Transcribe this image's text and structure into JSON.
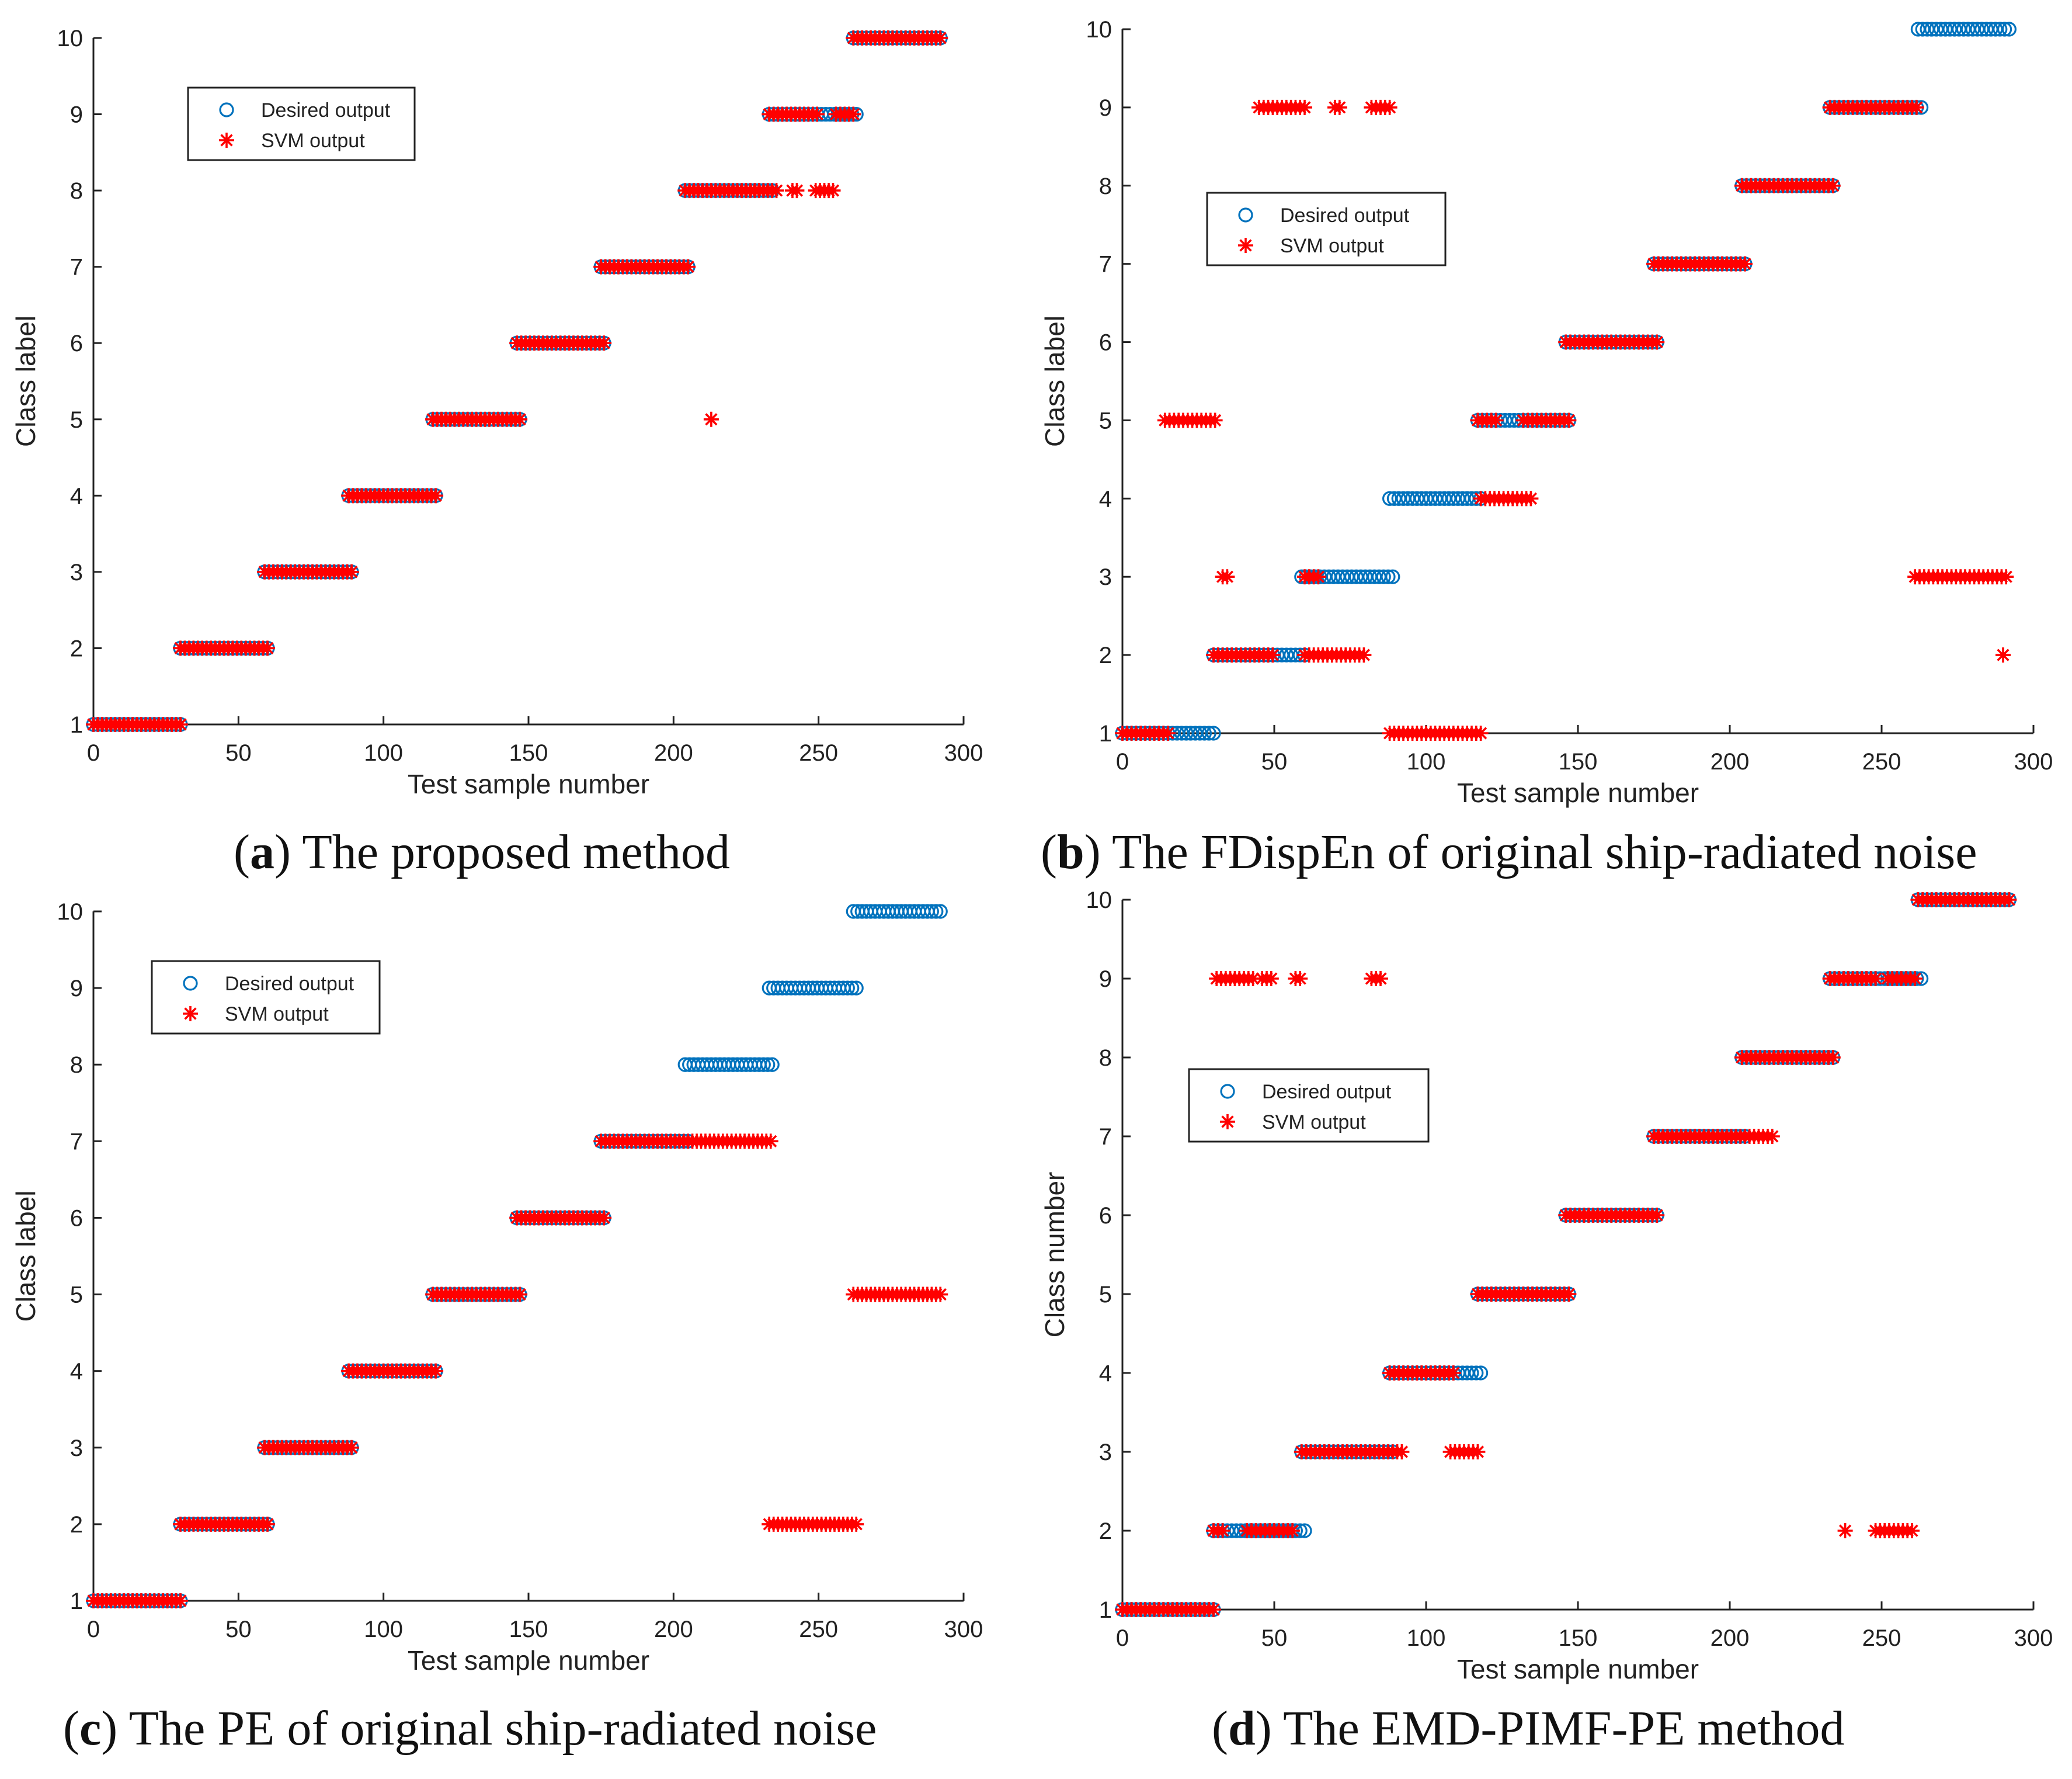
{
  "colors": {
    "desired": "#0072BD",
    "svm": "#FF0000",
    "axis": "#222222",
    "background": "#ffffff"
  },
  "legend": {
    "desired_label": "Desired output",
    "svm_label": "SVM output"
  },
  "chart_data": [
    {
      "id": "a",
      "type": "scatter",
      "caption_letter": "a",
      "caption_text": "The proposed method",
      "title": "",
      "xlabel": "Test sample number",
      "ylabel": "Class label",
      "xlim": [
        0,
        300
      ],
      "ylim": [
        1,
        10
      ],
      "xticks": [
        0,
        50,
        100,
        150,
        200,
        250,
        300
      ],
      "yticks": [
        1,
        2,
        3,
        4,
        5,
        6,
        7,
        8,
        9,
        10
      ],
      "legend_position": "top-left",
      "desired": [
        {
          "y": 1,
          "x_start": 0,
          "x_end": 31
        },
        {
          "y": 2,
          "x_start": 30,
          "x_end": 60
        },
        {
          "y": 3,
          "x_start": 59,
          "x_end": 89
        },
        {
          "y": 4,
          "x_start": 88,
          "x_end": 118
        },
        {
          "y": 5,
          "x_start": 117,
          "x_end": 147
        },
        {
          "y": 6,
          "x_start": 146,
          "x_end": 176
        },
        {
          "y": 7,
          "x_start": 175,
          "x_end": 205
        },
        {
          "y": 8,
          "x_start": 204,
          "x_end": 234
        },
        {
          "y": 9,
          "x_start": 233,
          "x_end": 263
        },
        {
          "y": 10,
          "x_start": 262,
          "x_end": 292
        }
      ],
      "svm": [
        {
          "y": 1,
          "x_start": 0,
          "x_end": 31
        },
        {
          "y": 2,
          "x_start": 30,
          "x_end": 60
        },
        {
          "y": 3,
          "x_start": 59,
          "x_end": 89
        },
        {
          "y": 4,
          "x_start": 88,
          "x_end": 118
        },
        {
          "y": 5,
          "x_start": 117,
          "x_end": 147
        },
        {
          "y": 6,
          "x_start": 146,
          "x_end": 176
        },
        {
          "y": 7,
          "x_start": 175,
          "x_end": 205
        },
        {
          "y": 8,
          "x_start": 204,
          "x_end": 236
        },
        {
          "y": 8,
          "x_start": 241,
          "x_end": 243
        },
        {
          "y": 8,
          "x_start": 249,
          "x_end": 256
        },
        {
          "y": 5,
          "x_start": 213,
          "x_end": 213
        },
        {
          "y": 9,
          "x_start": 233,
          "x_end": 250
        },
        {
          "y": 9,
          "x_start": 256,
          "x_end": 263
        },
        {
          "y": 10,
          "x_start": 262,
          "x_end": 292
        }
      ]
    },
    {
      "id": "b",
      "type": "scatter",
      "caption_letter": "b",
      "caption_text": "The FDispEn of original ship-radiated noise",
      "title": "",
      "xlabel": "Test sample number",
      "ylabel": "Class label",
      "xlim": [
        0,
        300
      ],
      "ylim": [
        1,
        10
      ],
      "xticks": [
        0,
        50,
        100,
        150,
        200,
        250,
        300
      ],
      "yticks": [
        1,
        2,
        3,
        4,
        5,
        6,
        7,
        8,
        9,
        10
      ],
      "legend_position": "top-left",
      "desired": [
        {
          "y": 1,
          "x_start": 0,
          "x_end": 31
        },
        {
          "y": 2,
          "x_start": 30,
          "x_end": 60
        },
        {
          "y": 3,
          "x_start": 59,
          "x_end": 89
        },
        {
          "y": 4,
          "x_start": 88,
          "x_end": 118
        },
        {
          "y": 5,
          "x_start": 117,
          "x_end": 147
        },
        {
          "y": 6,
          "x_start": 146,
          "x_end": 176
        },
        {
          "y": 7,
          "x_start": 175,
          "x_end": 205
        },
        {
          "y": 8,
          "x_start": 204,
          "x_end": 234
        },
        {
          "y": 9,
          "x_start": 233,
          "x_end": 263
        },
        {
          "y": 10,
          "x_start": 262,
          "x_end": 292
        }
      ],
      "svm": [
        {
          "y": 1,
          "x_start": 0,
          "x_end": 16
        },
        {
          "y": 5,
          "x_start": 14,
          "x_end": 31
        },
        {
          "y": 2,
          "x_start": 30,
          "x_end": 50
        },
        {
          "y": 3,
          "x_start": 33,
          "x_end": 35
        },
        {
          "y": 9,
          "x_start": 45,
          "x_end": 61
        },
        {
          "y": 9,
          "x_start": 70,
          "x_end": 72
        },
        {
          "y": 9,
          "x_start": 82,
          "x_end": 89
        },
        {
          "y": 2,
          "x_start": 60,
          "x_end": 80
        },
        {
          "y": 3,
          "x_start": 60,
          "x_end": 65
        },
        {
          "y": 1,
          "x_start": 88,
          "x_end": 118
        },
        {
          "y": 5,
          "x_start": 117,
          "x_end": 124
        },
        {
          "y": 5,
          "x_start": 132,
          "x_end": 147
        },
        {
          "y": 4,
          "x_start": 118,
          "x_end": 135
        },
        {
          "y": 6,
          "x_start": 146,
          "x_end": 176
        },
        {
          "y": 7,
          "x_start": 175,
          "x_end": 205
        },
        {
          "y": 8,
          "x_start": 204,
          "x_end": 234
        },
        {
          "y": 9,
          "x_start": 233,
          "x_end": 262
        },
        {
          "y": 3,
          "x_start": 261,
          "x_end": 291
        },
        {
          "y": 2,
          "x_start": 290,
          "x_end": 291
        }
      ]
    },
    {
      "id": "c",
      "type": "scatter",
      "caption_letter": "c",
      "caption_text": "The PE of original ship-radiated noise",
      "title": "",
      "xlabel": "Test sample number",
      "ylabel": "Class label",
      "xlim": [
        0,
        300
      ],
      "ylim": [
        1,
        10
      ],
      "xticks": [
        0,
        50,
        100,
        150,
        200,
        250,
        300
      ],
      "yticks": [
        1,
        2,
        3,
        4,
        5,
        6,
        7,
        8,
        9,
        10
      ],
      "legend_position": "top-left",
      "desired": [
        {
          "y": 1,
          "x_start": 0,
          "x_end": 31
        },
        {
          "y": 2,
          "x_start": 30,
          "x_end": 60
        },
        {
          "y": 3,
          "x_start": 59,
          "x_end": 89
        },
        {
          "y": 4,
          "x_start": 88,
          "x_end": 118
        },
        {
          "y": 5,
          "x_start": 117,
          "x_end": 147
        },
        {
          "y": 6,
          "x_start": 146,
          "x_end": 176
        },
        {
          "y": 7,
          "x_start": 175,
          "x_end": 205
        },
        {
          "y": 8,
          "x_start": 204,
          "x_end": 234
        },
        {
          "y": 9,
          "x_start": 233,
          "x_end": 263
        },
        {
          "y": 10,
          "x_start": 262,
          "x_end": 292
        }
      ],
      "svm": [
        {
          "y": 1,
          "x_start": 0,
          "x_end": 31
        },
        {
          "y": 2,
          "x_start": 30,
          "x_end": 60
        },
        {
          "y": 3,
          "x_start": 59,
          "x_end": 89
        },
        {
          "y": 4,
          "x_start": 88,
          "x_end": 118
        },
        {
          "y": 5,
          "x_start": 117,
          "x_end": 147
        },
        {
          "y": 6,
          "x_start": 146,
          "x_end": 176
        },
        {
          "y": 7,
          "x_start": 175,
          "x_end": 234
        },
        {
          "y": 2,
          "x_start": 233,
          "x_end": 263
        },
        {
          "y": 5,
          "x_start": 262,
          "x_end": 292
        }
      ]
    },
    {
      "id": "d",
      "type": "scatter",
      "caption_letter": "d",
      "caption_text": "The EMD-PIMF-PE method",
      "title": "",
      "xlabel": "Test sample number",
      "ylabel": "Class number",
      "xlim": [
        0,
        300
      ],
      "ylim": [
        1,
        10
      ],
      "xticks": [
        0,
        50,
        100,
        150,
        200,
        250,
        300
      ],
      "yticks": [
        1,
        2,
        3,
        4,
        5,
        6,
        7,
        8,
        9,
        10
      ],
      "legend_position": "top-left",
      "desired": [
        {
          "y": 1,
          "x_start": 0,
          "x_end": 31
        },
        {
          "y": 2,
          "x_start": 30,
          "x_end": 60
        },
        {
          "y": 3,
          "x_start": 59,
          "x_end": 89
        },
        {
          "y": 4,
          "x_start": 88,
          "x_end": 118
        },
        {
          "y": 5,
          "x_start": 117,
          "x_end": 147
        },
        {
          "y": 6,
          "x_start": 146,
          "x_end": 176
        },
        {
          "y": 7,
          "x_start": 175,
          "x_end": 205
        },
        {
          "y": 8,
          "x_start": 204,
          "x_end": 234
        },
        {
          "y": 9,
          "x_start": 233,
          "x_end": 263
        },
        {
          "y": 10,
          "x_start": 262,
          "x_end": 292
        }
      ],
      "svm": [
        {
          "y": 1,
          "x_start": 0,
          "x_end": 31
        },
        {
          "y": 9,
          "x_start": 31,
          "x_end": 44
        },
        {
          "y": 9,
          "x_start": 46,
          "x_end": 50
        },
        {
          "y": 9,
          "x_start": 57,
          "x_end": 59
        },
        {
          "y": 9,
          "x_start": 82,
          "x_end": 85
        },
        {
          "y": 2,
          "x_start": 30,
          "x_end": 33
        },
        {
          "y": 2,
          "x_start": 41,
          "x_end": 56
        },
        {
          "y": 3,
          "x_start": 59,
          "x_end": 92
        },
        {
          "y": 3,
          "x_start": 108,
          "x_end": 117
        },
        {
          "y": 4,
          "x_start": 88,
          "x_end": 110
        },
        {
          "y": 5,
          "x_start": 117,
          "x_end": 147
        },
        {
          "y": 6,
          "x_start": 146,
          "x_end": 176
        },
        {
          "y": 7,
          "x_start": 175,
          "x_end": 214
        },
        {
          "y": 8,
          "x_start": 204,
          "x_end": 234
        },
        {
          "y": 9,
          "x_start": 233,
          "x_end": 248
        },
        {
          "y": 9,
          "x_start": 252,
          "x_end": 262
        },
        {
          "y": 2,
          "x_start": 238,
          "x_end": 238
        },
        {
          "y": 2,
          "x_start": 248,
          "x_end": 260
        },
        {
          "y": 10,
          "x_start": 262,
          "x_end": 292
        }
      ]
    }
  ]
}
